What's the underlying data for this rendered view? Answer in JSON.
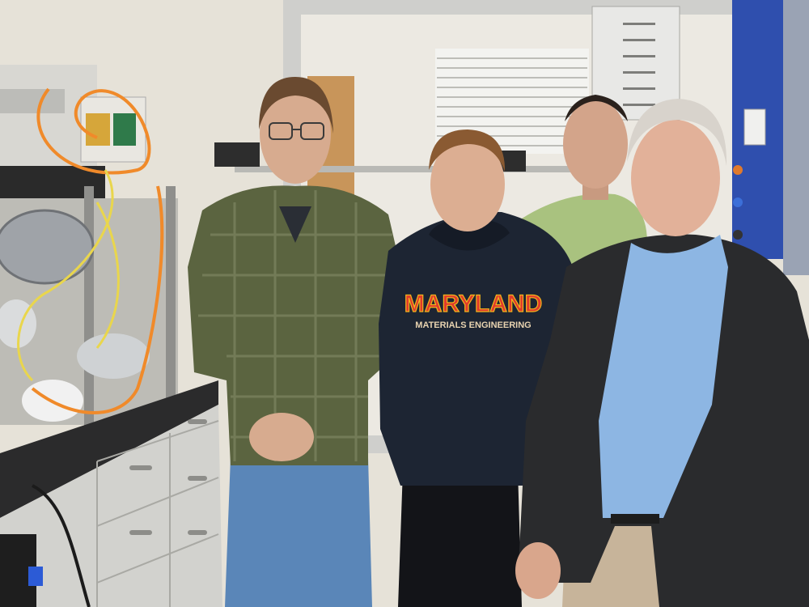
{
  "photo": {
    "subject": "Four men standing in a laboratory",
    "sweatshirt_text": {
      "line1": "MARYLAND",
      "line2": "MATERIALS ENGINEERING"
    }
  },
  "colors": {
    "wall": "#e6e2d8",
    "plaid_shirt": "#5b6440",
    "hoodie": "#1d2533",
    "maryland_red": "#e03a2c",
    "maryland_gold": "#f2b51c",
    "green_tshirt": "#a9c27f",
    "blue_shirt": "#8db6e3",
    "blazer": "#2a2b2d",
    "jeans": "#5a86b8",
    "cabinet": "#d2d2ce",
    "lab_frame_blue": "#2f4fae",
    "orange_cable": "#f08a2a",
    "yellow_cable": "#e9d64c"
  }
}
